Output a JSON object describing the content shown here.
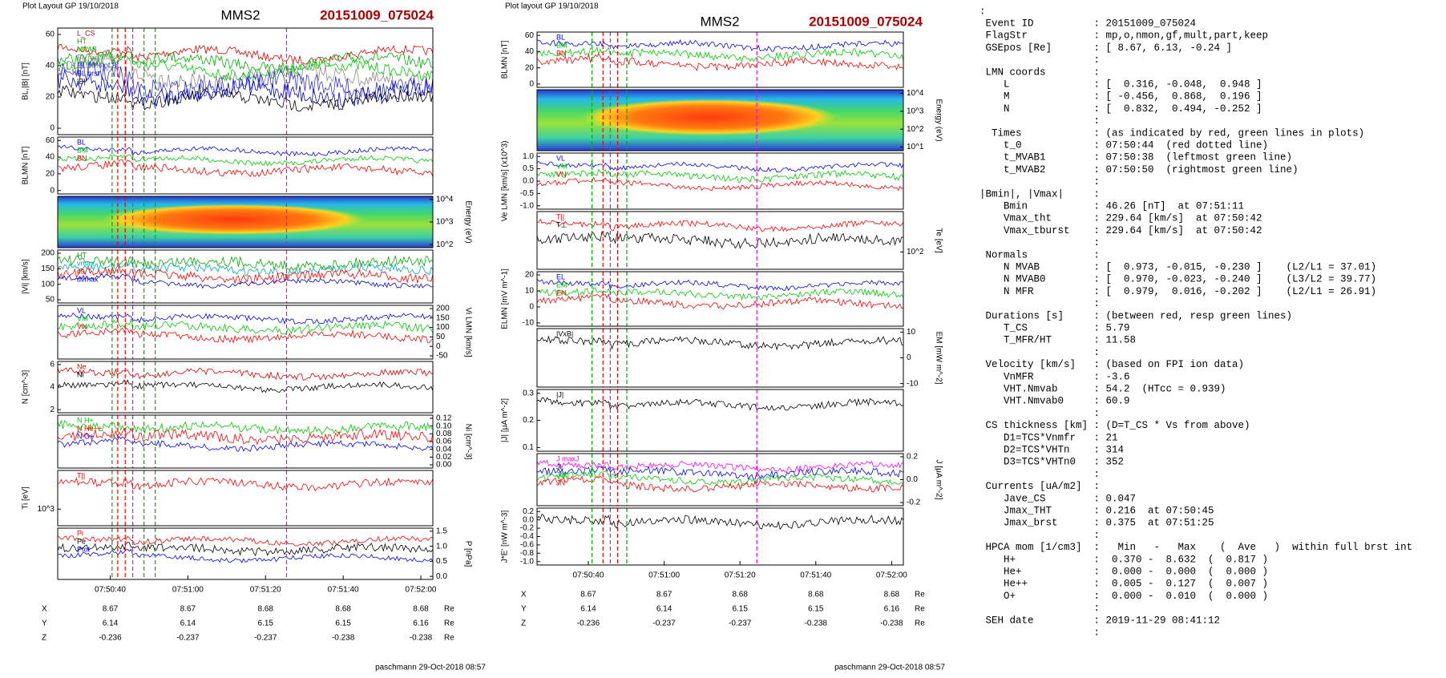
{
  "plots": [
    {
      "header": "Plot Layout GP 19/10/2018",
      "title": "MMS2",
      "event": "20151009_075024",
      "panels": [
        {
          "label": "BL,|B| [nT]",
          "side": "left",
          "ticks": [
            "60",
            "40",
            "20",
            "0"
          ],
          "legend": [
            {
              "name": "L_CS",
              "color": "#d00"
            },
            {
              "name": "HT",
              "color": "#0a0"
            },
            {
              "name": "MVAB",
              "color": "#0c0"
            },
            {
              "name": "BL,min/max",
              "color": "#888"
            },
            {
              "name": "BL 50% of BL",
              "color": "#33c"
            },
            {
              "name": "BL brst",
              "color": "#00c"
            },
            {
              "name": "|B|",
              "color": "#000"
            }
          ]
        },
        {
          "label": "BLMN [nT]",
          "side": "left",
          "ticks": [
            "60",
            "40",
            "20",
            "0"
          ],
          "legend": [
            {
              "name": "BL",
              "color": "#00f"
            },
            {
              "name": "BM",
              "color": "#0c0"
            },
            {
              "name": "BN",
              "color": "#f00"
            }
          ]
        },
        {
          "label": "Energy (eV)",
          "side": "right",
          "ticks": [
            "10^4",
            "10^3",
            "10^2"
          ],
          "legend": [],
          "spectrogram": true
        },
        {
          "label": "|Vi| [km/s]",
          "side": "left",
          "ticks": [
            "200",
            "150",
            "100",
            "50"
          ],
          "legend": [
            {
              "name": "HT",
              "color": "#0a0"
            },
            {
              "name": "vmax",
              "color": "#0aa"
            },
            {
              "name": "cs",
              "color": "#f00"
            },
            {
              "name": "dvmax",
              "color": "#00c"
            }
          ]
        },
        {
          "label": "Vi LMN [km/s]",
          "side": "right",
          "ticks": [
            "200",
            "150",
            "100",
            "50",
            "0",
            "-50"
          ],
          "legend": [
            {
              "name": "VL",
              "color": "#00f"
            },
            {
              "name": "VM",
              "color": "#0c0"
            },
            {
              "name": "VN",
              "color": "#f00"
            }
          ]
        },
        {
          "label": "N [cm^-3]",
          "side": "left",
          "ticks": [
            "6",
            "4",
            "2"
          ],
          "legend": [
            {
              "name": "Ne",
              "color": "#d00"
            },
            {
              "name": "Ni",
              "color": "#000"
            }
          ]
        },
        {
          "label": "Ni [cm^-3]",
          "side": "right",
          "ticks": [
            "0.12",
            "0.10",
            "0.08",
            "0.06",
            "0.04",
            "0.02",
            "0.00"
          ],
          "legend": [
            {
              "name": "N H+",
              "color": "#0c0"
            },
            {
              "name": "N He++",
              "color": "#f00"
            },
            {
              "name": "N O+",
              "color": "#00f"
            }
          ]
        },
        {
          "label": "Ti [eV]",
          "side": "left",
          "ticks": [
            "10^3"
          ],
          "legend": [
            {
              "name": "T||",
              "color": "#f00"
            }
          ]
        },
        {
          "label": "P [nPa]",
          "side": "right",
          "ticks": [
            "1.5",
            "1.0",
            "0.5",
            "0.0"
          ],
          "legend": [
            {
              "name": "Pi",
              "color": "#f00"
            },
            {
              "name": "Pe",
              "color": "#000"
            },
            {
              "name": "Ptot",
              "color": "#00f"
            }
          ]
        }
      ],
      "time_ticks": [
        "07:50:40",
        "07:51:00",
        "07:51:20",
        "07:51:40",
        "07:52:00"
      ],
      "position": [
        {
          "name": "X",
          "values": [
            "8.67",
            "8.67",
            "8.68",
            "8.68",
            "8.68"
          ],
          "unit": "Re"
        },
        {
          "name": "Y",
          "values": [
            "6.14",
            "6.14",
            "6.15",
            "6.15",
            "6.16"
          ],
          "unit": "Re"
        },
        {
          "name": "Z",
          "values": [
            "-0.236",
            "-0.237",
            "-0.237",
            "-0.238",
            "-0.238"
          ],
          "unit": "Re"
        }
      ],
      "footer": "paschmann 29-Oct-2018 08:57"
    },
    {
      "header": "Plot layout GP 19/10/2018",
      "title": "MMS2",
      "event": "20151009_075024",
      "panels": [
        {
          "label": "BLMN [nT]",
          "side": "left",
          "ticks": [
            "60",
            "40",
            "20",
            "0"
          ],
          "legend": [
            {
              "name": "BL",
              "color": "#00f"
            },
            {
              "name": "BM",
              "color": "#0c0"
            },
            {
              "name": "BN",
              "color": "#f00"
            }
          ]
        },
        {
          "label": "Energy (eV)",
          "side": "right",
          "ticks": [
            "10^4",
            "10^3",
            "10^2",
            "10^1"
          ],
          "legend": [],
          "spectrogram": true
        },
        {
          "label": "Ve LMN [km/s] (x10^3)",
          "side": "left",
          "ticks": [
            "1.0",
            "0.5",
            "0.0",
            "-0.5",
            "-1.0"
          ],
          "legend": [
            {
              "name": "VL",
              "color": "#00f"
            },
            {
              "name": "VM",
              "color": "#0c0"
            },
            {
              "name": "VN",
              "color": "#f00"
            }
          ]
        },
        {
          "label": "Te [eV]",
          "side": "right",
          "ticks": [
            "10^2"
          ],
          "legend": [
            {
              "name": "T||",
              "color": "#f00"
            },
            {
              "name": "T⊥",
              "color": "#000"
            }
          ]
        },
        {
          "label": "ELMN [mV m^-1]",
          "side": "left",
          "ticks": [
            "20",
            "10",
            "0",
            "-10"
          ],
          "legend": [
            {
              "name": "EL",
              "color": "#00f"
            },
            {
              "name": "EM",
              "color": "#0c0"
            },
            {
              "name": "EN",
              "color": "#f00"
            }
          ]
        },
        {
          "label": "EM [mW m^-2]",
          "side": "right",
          "ticks": [
            "10",
            "0",
            "-10"
          ],
          "legend": [
            {
              "name": "|VxB|",
              "color": "#000"
            }
          ]
        },
        {
          "label": "|J| [μA m^-2]",
          "side": "left",
          "ticks": [
            "0.3",
            "0.2",
            "0.1"
          ],
          "legend": [
            {
              "name": "|J|",
              "color": "#000"
            }
          ]
        },
        {
          "label": "J [μA m^-2]",
          "side": "right",
          "ticks": [
            "0.2",
            "0.0",
            "-0.2"
          ],
          "legend": [
            {
              "name": "J maxJ",
              "color": "#f0f"
            },
            {
              "name": "JL",
              "color": "#00f"
            },
            {
              "name": "JM",
              "color": "#0c0"
            },
            {
              "name": "JN",
              "color": "#f00"
            }
          ]
        },
        {
          "label": "J*E' [nW m^-3]",
          "side": "left",
          "ticks": [
            "0.2",
            "0.0",
            "-0.2",
            "-0.4",
            "-0.6",
            "-0.8",
            "-1.0"
          ],
          "legend": []
        }
      ],
      "time_ticks": [
        "07:50:40",
        "07:51:00",
        "07:51:20",
        "07:51:40",
        "07:52:00"
      ],
      "position": [
        {
          "name": "X",
          "values": [
            "8.67",
            "8.67",
            "8.68",
            "8.68",
            "8.68"
          ],
          "unit": "Re"
        },
        {
          "name": "Y",
          "values": [
            "6.14",
            "6.14",
            "6.15",
            "6.15",
            "6.16"
          ],
          "unit": "Re"
        },
        {
          "name": "Z",
          "values": [
            "-0.236",
            "-0.237",
            "-0.237",
            "-0.238",
            "-0.238"
          ],
          "unit": "Re"
        }
      ],
      "footer": "paschmann 29-Oct-2018 08:57"
    }
  ],
  "listing": [
    ":",
    " Event ID          : 20151009_075024",
    " FlagStr           : mp,o,nmon,gf,mult,part,keep",
    " GSEpos [Re]       : [ 8.67, 6.13, -0.24 ]",
    "                   :",
    " LMN coords        :",
    "    L              : [  0.316, -0.048,  0.948 ]",
    "    M              : [ -0.456,  0.868,  0.196 ]",
    "    N              : [  0.832,  0.494, -0.252 ]",
    "                   :",
    "  Times            : (as indicated by red, green lines in plots)",
    "    t_0            : 07:50:44  (red dotted line)",
    "    t_MVAB1        : 07:50:38  (leftmost green line)",
    "    t_MVAB2        : 07:50:50  (rightmost green line)",
    "                   :",
    "|Bmin|, |Vmax|     :",
    "    Bmin           : 46.26 [nT]  at 07:51:11",
    "    Vmax_tht       : 229.64 [km/s]  at 07:50:42",
    "    Vmax_tburst    : 229.64 [km/s]  at 07:50:42",
    "                   :",
    " Normals           :",
    "    N MVAB         : [  0.973, -0.015, -0.230 ]    (L2/L1 = 37.01)",
    "    N MVAB0        : [  0.970, -0.023, -0.240 ]    (L3/L2 = 39.77)",
    "    N MFR          : [  0.979,  0.016, -0.202 ]    (L2/L1 = 26.91)",
    "                   :",
    " Durations [s]     : (between red, resp green lines)",
    "    T_CS           : 5.79",
    "    T_MFR/HT       : 11.58",
    "                   :",
    " Velocity [km/s]   : (based on FPI ion data)",
    "    VnMFR          : -3.6",
    "    VHT.Nmvab      : 54.2  (HTcc = 0.939)",
    "    VHT.Nmvab0     : 60.9",
    "                   :",
    " CS thickness [km] : (D=T_CS * Vs from above)",
    "    D1=TCS*Vnmfr   : 21",
    "    D2=TCS*VHTn    : 314",
    "    D3=TCS*VHTn0   : 352",
    "                   :",
    " Currents [uA/m2]  :",
    "    Jave_CS        : 0.047",
    "    Jmax_THT       : 0.216  at 07:50:45",
    "    Jmax_brst      : 0.375  at 07:51:25",
    "                   :",
    " HPCA mom [1/cm3]  :   Min   -   Max    (  Ave   )  within full brst int",
    "    H+             :  0.370 -  8.632  (  0.817 )",
    "    He+            :  0.000 -  0.000  (  0.000 )",
    "    He++           :  0.005 -  0.127  (  0.007 )",
    "    O+             :  0.000 -  0.010  (  0.000 )",
    "                   :",
    " SEH date          : 2019-11-29 08:41:12",
    "                   :"
  ]
}
